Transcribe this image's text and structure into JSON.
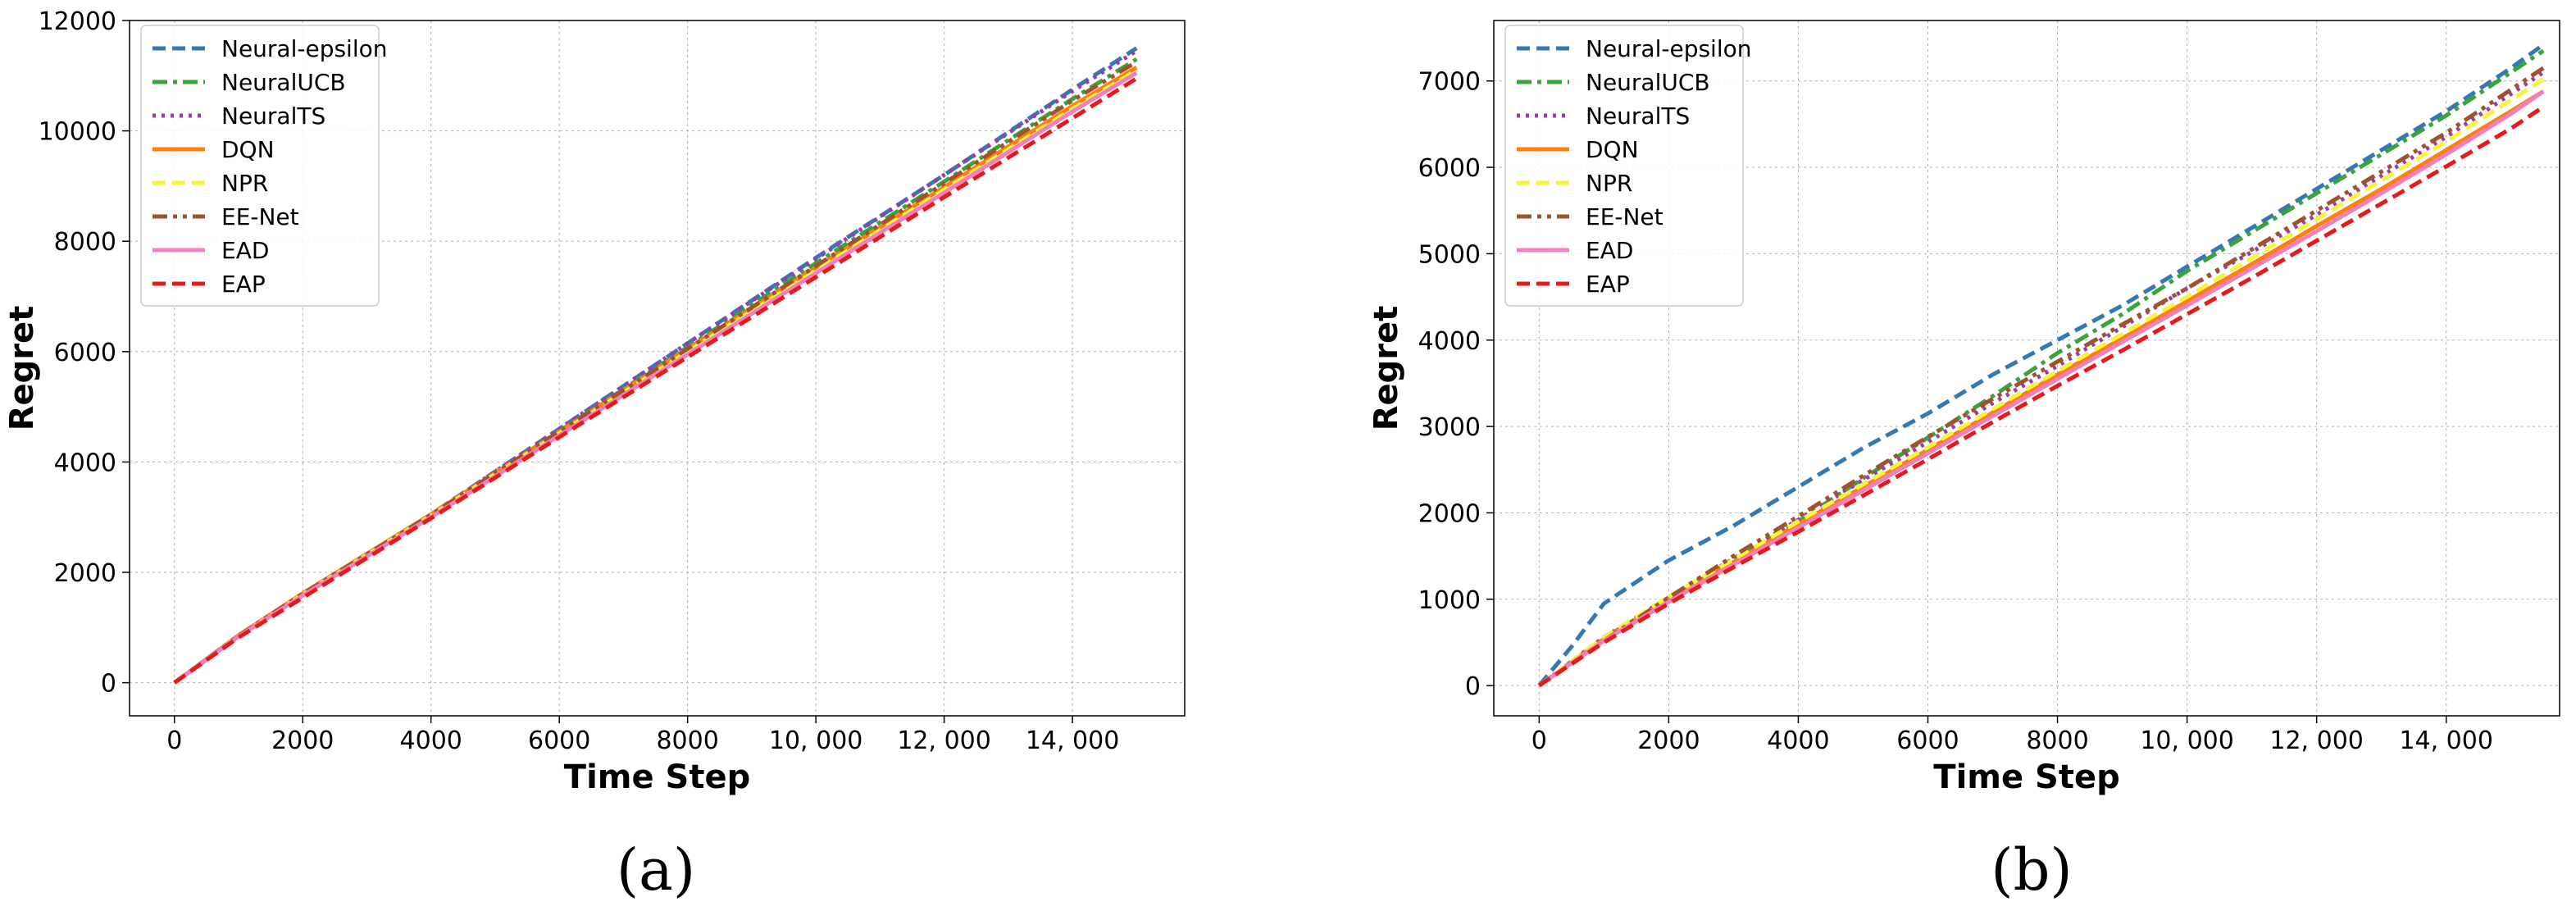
{
  "chart_data": [
    {
      "type": "line",
      "caption": "(a)",
      "xlabel": "Time Step",
      "ylabel": "Regret",
      "xlim": [
        -700,
        15750
      ],
      "ylim": [
        -600,
        12000
      ],
      "xticks": [
        0,
        2000,
        4000,
        6000,
        8000,
        10000,
        12000,
        14000
      ],
      "xtick_labels": [
        "0",
        "2000",
        "4000",
        "6000",
        "8000",
        "10, 000",
        "12, 000",
        "14, 000"
      ],
      "yticks": [
        0,
        2000,
        4000,
        6000,
        8000,
        10000,
        12000
      ],
      "ytick_labels": [
        "0",
        "2000",
        "4000",
        "6000",
        "8000",
        "10000",
        "12000"
      ],
      "grid": true,
      "legend_position": "top-left",
      "series": [
        {
          "name": "Neural-epsilon",
          "color": "#3579b3",
          "dash": "dashed",
          "x": [
            0,
            1000,
            2000,
            4000,
            6000,
            8000,
            10000,
            12000,
            14000,
            15000
          ],
          "y": [
            0,
            850,
            1600,
            3050,
            4600,
            6150,
            7700,
            9200,
            10750,
            11500
          ]
        },
        {
          "name": "NeuralUCB",
          "color": "#3aa33a",
          "dash": "dashdot",
          "x": [
            0,
            1000,
            2000,
            4000,
            6000,
            8000,
            10000,
            12000,
            14000,
            15000
          ],
          "y": [
            0,
            840,
            1580,
            3030,
            4560,
            6080,
            7600,
            9080,
            10580,
            11300
          ]
        },
        {
          "name": "NeuralTS",
          "color": "#9b3bb0",
          "dash": "dotted",
          "x": [
            0,
            1000,
            2000,
            4000,
            6000,
            8000,
            10000,
            12000,
            14000,
            15000
          ],
          "y": [
            0,
            850,
            1600,
            3050,
            4600,
            6150,
            7680,
            9200,
            10720,
            11450
          ]
        },
        {
          "name": "DQN",
          "color": "#ff7f0e",
          "dash": "solid",
          "x": [
            0,
            1000,
            2000,
            4000,
            6000,
            8000,
            10000,
            12000,
            14000,
            15000
          ],
          "y": [
            0,
            860,
            1620,
            3050,
            4550,
            6050,
            7520,
            8980,
            10450,
            11150
          ]
        },
        {
          "name": "NPR",
          "color": "#f5f53a",
          "dash": "dashed",
          "x": [
            0,
            1000,
            2000,
            4000,
            6000,
            8000,
            10000,
            12000,
            14000,
            15000
          ],
          "y": [
            0,
            845,
            1600,
            3030,
            4520,
            6000,
            7470,
            8930,
            10400,
            11100
          ]
        },
        {
          "name": "EE-Net",
          "color": "#a0522d",
          "dash": "dashdotdot",
          "x": [
            0,
            1000,
            2000,
            4000,
            6000,
            8000,
            10000,
            12000,
            14000,
            15000
          ],
          "y": [
            0,
            850,
            1610,
            3040,
            4550,
            6050,
            7550,
            9050,
            10550,
            11250
          ]
        },
        {
          "name": "EAD",
          "color": "#f27fbf",
          "dash": "solid",
          "x": [
            0,
            1000,
            2000,
            4000,
            6000,
            8000,
            10000,
            12000,
            14000,
            15000
          ],
          "y": [
            0,
            840,
            1580,
            3000,
            4480,
            5950,
            7420,
            8880,
            10350,
            11050
          ]
        },
        {
          "name": "EAP",
          "color": "#e41a1c",
          "dash": "dashed",
          "x": [
            0,
            1000,
            2000,
            4000,
            6000,
            8000,
            10000,
            12000,
            14000,
            15000
          ],
          "y": [
            0,
            820,
            1540,
            2980,
            4450,
            5900,
            7350,
            8800,
            10230,
            10950
          ]
        }
      ]
    },
    {
      "type": "line",
      "caption": "(b)",
      "xlabel": "Time Step",
      "ylabel": "Regret",
      "xlim": [
        -700,
        15750
      ],
      "ylim": [
        -350,
        7700
      ],
      "xticks": [
        0,
        2000,
        4000,
        6000,
        8000,
        10000,
        12000,
        14000
      ],
      "xtick_labels": [
        "0",
        "2000",
        "4000",
        "6000",
        "8000",
        "10, 000",
        "12, 000",
        "14, 000"
      ],
      "yticks": [
        0,
        1000,
        2000,
        3000,
        4000,
        5000,
        6000,
        7000
      ],
      "ytick_labels": [
        "0",
        "1000",
        "2000",
        "3000",
        "4000",
        "5000",
        "6000",
        "7000"
      ],
      "grid": true,
      "legend_position": "top-left",
      "series": [
        {
          "name": "Neural-epsilon",
          "color": "#3579b3",
          "dash": "dashed",
          "x": [
            0,
            500,
            1000,
            1500,
            2000,
            3000,
            4000,
            5000,
            6000,
            7000,
            8000,
            9000,
            10000,
            11000,
            12000,
            13000,
            14000,
            15000,
            15500
          ],
          "y": [
            0,
            450,
            950,
            1200,
            1450,
            1850,
            2300,
            2750,
            3150,
            3600,
            4000,
            4400,
            4850,
            5300,
            5750,
            6200,
            6650,
            7150,
            7420
          ]
        },
        {
          "name": "NeuralUCB",
          "color": "#3aa33a",
          "dash": "dashdot",
          "x": [
            0,
            1000,
            2000,
            3000,
            4000,
            5000,
            6000,
            7000,
            8000,
            9000,
            10000,
            11000,
            12000,
            13000,
            14000,
            15000,
            15500
          ],
          "y": [
            0,
            550,
            1000,
            1450,
            1900,
            2400,
            2870,
            3350,
            3850,
            4300,
            4800,
            5250,
            5700,
            6150,
            6600,
            7100,
            7350
          ]
        },
        {
          "name": "NeuralTS",
          "color": "#9b3bb0",
          "dash": "dotted",
          "x": [
            0,
            1000,
            2000,
            3000,
            4000,
            5000,
            6000,
            7000,
            8000,
            9000,
            10000,
            11000,
            12000,
            13000,
            14000,
            15000,
            15500
          ],
          "y": [
            0,
            560,
            1020,
            1470,
            1920,
            2380,
            2820,
            3270,
            3700,
            4150,
            4600,
            5020,
            5450,
            5900,
            6350,
            6850,
            7100
          ]
        },
        {
          "name": "DQN",
          "color": "#ff7f0e",
          "dash": "solid",
          "x": [
            0,
            1000,
            2000,
            3000,
            4000,
            5000,
            6000,
            7000,
            8000,
            9000,
            10000,
            11000,
            12000,
            13000,
            14000,
            15000,
            15500
          ],
          "y": [
            0,
            540,
            1000,
            1430,
            1870,
            2300,
            2730,
            3160,
            3600,
            4020,
            4450,
            4880,
            5320,
            5750,
            6200,
            6650,
            6880
          ]
        },
        {
          "name": "NPR",
          "color": "#f5f53a",
          "dash": "dashed",
          "x": [
            0,
            1000,
            2000,
            3000,
            4000,
            5000,
            6000,
            7000,
            8000,
            9000,
            10000,
            11000,
            12000,
            13000,
            14000,
            15000,
            15500
          ],
          "y": [
            0,
            560,
            1030,
            1460,
            1900,
            2330,
            2760,
            3200,
            3640,
            4070,
            4500,
            4950,
            5400,
            5850,
            6300,
            6780,
            7020
          ]
        },
        {
          "name": "EE-Net",
          "color": "#a0522d",
          "dash": "dashdotdot",
          "x": [
            0,
            1000,
            2000,
            3000,
            4000,
            5000,
            6000,
            7000,
            8000,
            9000,
            10000,
            11000,
            12000,
            13000,
            14000,
            15000,
            15500
          ],
          "y": [
            0,
            520,
            1020,
            1500,
            1960,
            2430,
            2880,
            3320,
            3750,
            4180,
            4600,
            5050,
            5500,
            5950,
            6400,
            6900,
            7150
          ]
        },
        {
          "name": "EAD",
          "color": "#f27fbf",
          "dash": "solid",
          "x": [
            0,
            1000,
            2000,
            3000,
            4000,
            5000,
            6000,
            7000,
            8000,
            9000,
            10000,
            11000,
            12000,
            13000,
            14000,
            15000,
            15500
          ],
          "y": [
            0,
            520,
            970,
            1400,
            1830,
            2260,
            2690,
            3120,
            3550,
            3980,
            4400,
            4830,
            5260,
            5700,
            6150,
            6620,
            6880
          ]
        },
        {
          "name": "EAP",
          "color": "#e41a1c",
          "dash": "dashed",
          "x": [
            0,
            1000,
            2000,
            3000,
            4000,
            5000,
            6000,
            7000,
            8000,
            9000,
            10000,
            11000,
            12000,
            13000,
            14000,
            15000,
            15500
          ],
          "y": [
            0,
            500,
            950,
            1370,
            1780,
            2200,
            2620,
            3050,
            3470,
            3880,
            4300,
            4720,
            5150,
            5580,
            6010,
            6450,
            6700
          ]
        }
      ]
    }
  ]
}
